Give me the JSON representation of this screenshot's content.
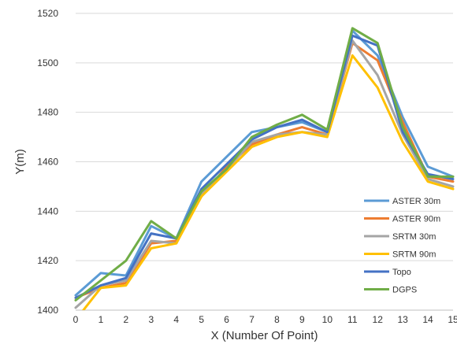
{
  "chart_data": {
    "type": "line",
    "title": "",
    "xlabel": "X (Number Of Point)",
    "ylabel": "Y(m)",
    "x": [
      0,
      1,
      2,
      3,
      4,
      5,
      6,
      7,
      8,
      9,
      10,
      11,
      12,
      13,
      14,
      15
    ],
    "xlim": [
      0,
      15
    ],
    "ylim": [
      1400,
      1520
    ],
    "yticks": [
      1400,
      1420,
      1440,
      1460,
      1480,
      1500,
      1520
    ],
    "grid": true,
    "legend_position": "bottom-right",
    "series": [
      {
        "name": "ASTER 30m",
        "color": "#5B9BD5",
        "values": [
          1406,
          1415,
          1414,
          1434,
          1429,
          1452,
          1462,
          1472,
          1474,
          1476,
          1472,
          1513,
          1503,
          1478,
          1458,
          1454
        ]
      },
      {
        "name": "ASTER 90m",
        "color": "#ED7D31",
        "values": [
          1405,
          1409,
          1411,
          1427,
          1428,
          1446,
          1458,
          1467,
          1471,
          1474,
          1471,
          1508,
          1501,
          1476,
          1454,
          1452
        ]
      },
      {
        "name": "SRTM 30m",
        "color": "#A5A5A5",
        "values": [
          1401,
          1410,
          1412,
          1428,
          1427,
          1447,
          1457,
          1468,
          1471,
          1472,
          1471,
          1509,
          1495,
          1471,
          1453,
          1450
        ]
      },
      {
        "name": "SRTM 90m",
        "color": "#FFC000",
        "values": [
          1396,
          1409,
          1410,
          1425,
          1427,
          1446,
          1456,
          1466,
          1470,
          1472,
          1470,
          1503,
          1490,
          1468,
          1452,
          1449
        ]
      },
      {
        "name": "Topo",
        "color": "#4472C4",
        "values": [
          1405,
          1410,
          1413,
          1431,
          1429,
          1449,
          1459,
          1469,
          1474,
          1477,
          1472,
          1511,
          1507,
          1472,
          1455,
          1453
        ]
      },
      {
        "name": "DGPS",
        "color": "#70AD47",
        "values": [
          1404,
          1412,
          1420,
          1436,
          1429,
          1448,
          1457,
          1470,
          1475,
          1479,
          1473,
          1514,
          1508,
          1474,
          1454,
          1454
        ]
      }
    ]
  }
}
